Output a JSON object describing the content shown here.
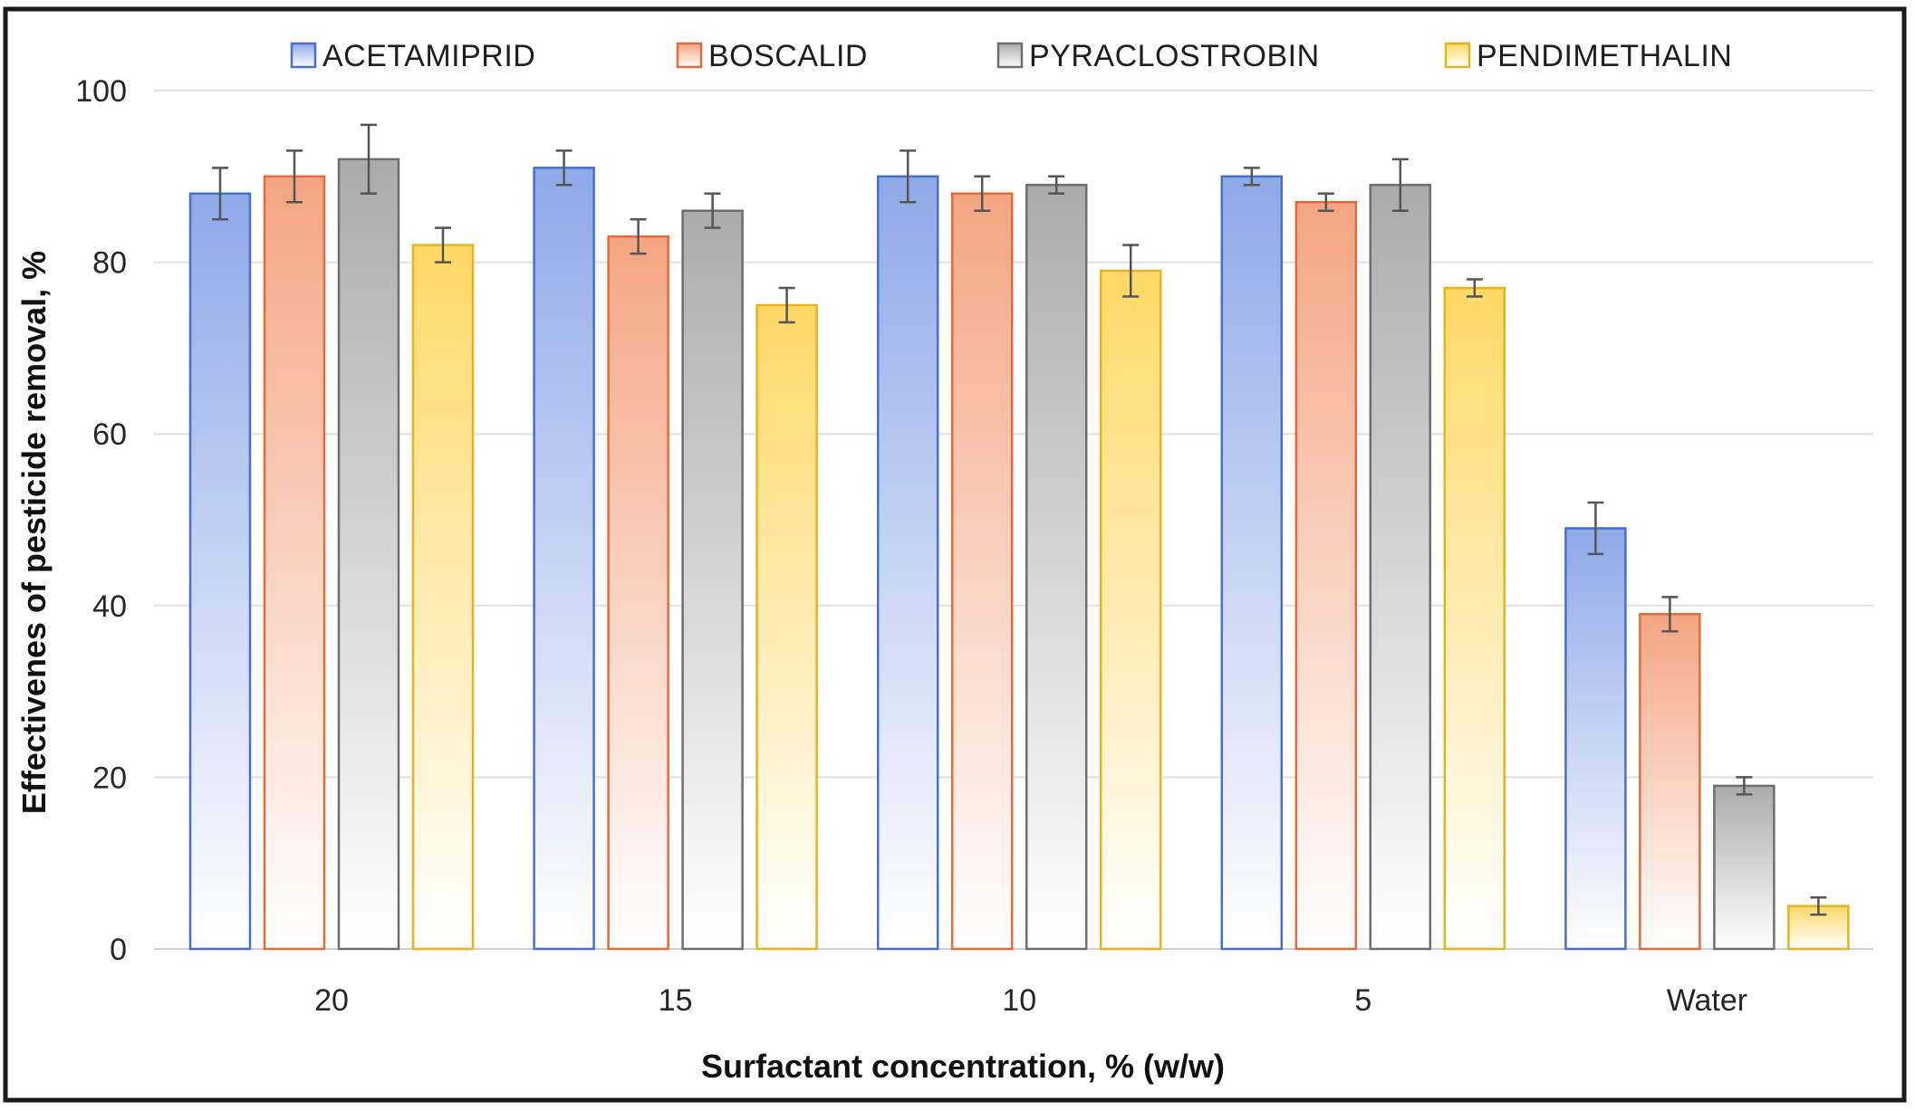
{
  "chart_data": {
    "type": "bar",
    "xlabel": "Surfactant concentration, % (w/w)",
    "ylabel": "Effectivenes of pesticide removal, %",
    "ylim": [
      0,
      100
    ],
    "yticks": [
      0,
      20,
      40,
      60,
      80,
      100
    ],
    "grid": true,
    "legend_position": "top",
    "categories": [
      "20",
      "15",
      "10",
      "5",
      "Water"
    ],
    "series": [
      {
        "name": "ACETAMIPRID",
        "color": "#8EA9E8",
        "border": "#4A6FC9",
        "values": [
          88,
          91,
          90,
          90,
          49
        ],
        "errors": [
          3,
          2,
          3,
          1,
          3
        ]
      },
      {
        "name": "BOSCALID",
        "color": "#F4A582",
        "border": "#E06C3D",
        "values": [
          90,
          83,
          88,
          87,
          39
        ],
        "errors": [
          3,
          2,
          2,
          1,
          2
        ]
      },
      {
        "name": "PYRACLOSTROBIN",
        "color": "#ABABAB",
        "border": "#6E6E6E",
        "values": [
          92,
          86,
          89,
          89,
          19
        ],
        "errors": [
          4,
          2,
          1,
          3,
          1
        ]
      },
      {
        "name": "PENDIMETHALIN",
        "color": "#FFD966",
        "border": "#E3B421",
        "values": [
          82,
          75,
          79,
          77,
          5
        ],
        "errors": [
          2,
          2,
          3,
          1,
          1
        ]
      }
    ]
  }
}
